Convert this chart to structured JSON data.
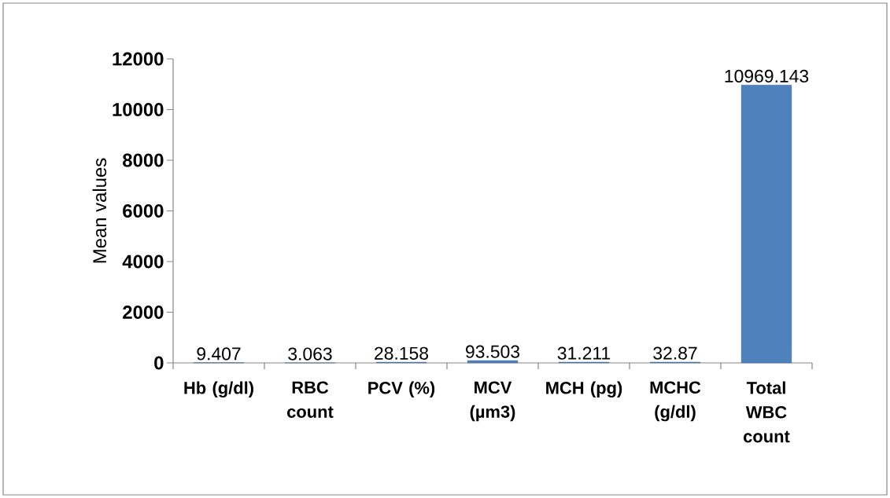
{
  "chart_data": {
    "type": "bar",
    "categories": [
      "Hb (g/dl)",
      "RBC count",
      "PCV (%)",
      "MCV (µm3)",
      "MCH (pg)",
      "MCHC (g/dl)",
      "Total WBC count"
    ],
    "values": [
      9.407,
      3.063,
      28.158,
      93.503,
      31.211,
      32.87,
      10969.143
    ],
    "color": "#4f81bd",
    "ylabel": "Mean values",
    "ylim": [
      0,
      12000
    ],
    "yticks": [
      0,
      2000,
      4000,
      6000,
      8000,
      10000,
      12000
    ],
    "data_labels": true
  }
}
